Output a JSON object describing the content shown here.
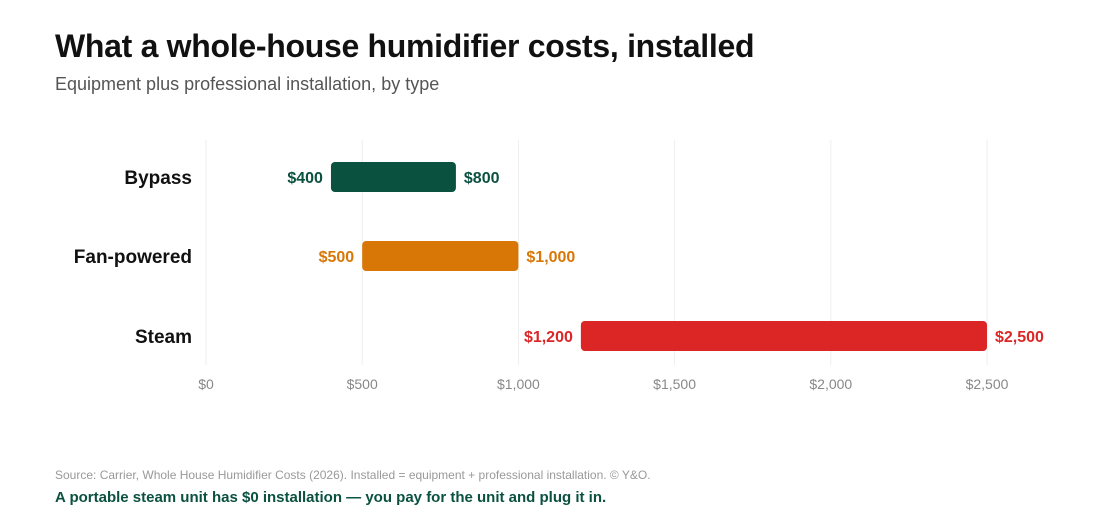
{
  "title": "What a whole-house humidifier costs, installed",
  "subtitle": "Equipment plus professional installation, by type",
  "source": "Source: Carrier, Whole House Humidifier Costs (2026). Installed = equipment + professional installation. © Y&O.",
  "note": "A portable steam unit has $0 installation — you pay for the unit and plug it in.",
  "chart_data": {
    "type": "bar",
    "orientation": "horizontal-range",
    "categories": [
      "Bypass",
      "Fan-powered",
      "Steam"
    ],
    "series": [
      {
        "low": [
          400,
          500,
          1200
        ],
        "high": [
          800,
          1000,
          2500
        ],
        "low_labels": [
          "$400",
          "$500",
          "$1,200"
        ],
        "high_labels": [
          "$800",
          "$1,000",
          "$2,500"
        ],
        "colors": [
          "#0b5140",
          "#d97706",
          "#dc2626"
        ]
      }
    ],
    "xlim": [
      0,
      2500
    ],
    "ticks": [
      0,
      500,
      1000,
      1500,
      2000,
      2500
    ],
    "tick_labels": [
      "$0",
      "$500",
      "$1,000",
      "$1,500",
      "$2,000",
      "$2,500"
    ],
    "grid": "vertical",
    "legend": "none"
  }
}
